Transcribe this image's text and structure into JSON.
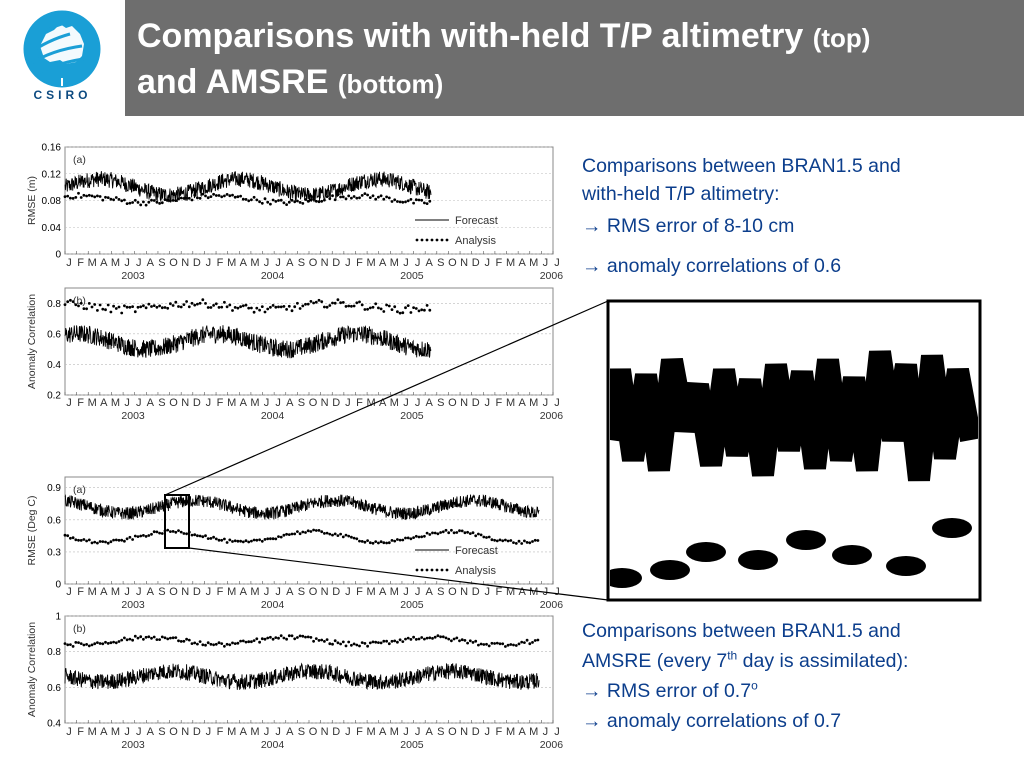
{
  "logo": {
    "text": "CSIRO",
    "color": "#1a9fd6"
  },
  "title": {
    "main": "Comparisons with with-held T/P altimetry",
    "part1_small": "(top)",
    "and": "and AMSRE",
    "part2_small": "(bottom)"
  },
  "colors": {
    "title_bar": "#6e6e6e",
    "title_text": "#ffffff",
    "body_text": "#0c3e8c"
  },
  "text_top": {
    "line1": "Comparisons between BRAN1.5 and",
    "line2": "with-held T/P altimetry:",
    "bullet1": "RMS error of 8-10 cm",
    "bullet2": "anomaly correlations of 0.6",
    "arrow": "→"
  },
  "text_bottom": {
    "line1": "Comparisons between BRAN1.5 and",
    "line2_pre": "AMSRE (every 7",
    "line2_sup": "th",
    "line2_post": " day is assimilated):",
    "bullet1_pre": "RMS error of 0.7",
    "bullet1_sup": "o",
    "bullet2": "anomaly correlations of 0.7",
    "arrow": "→"
  },
  "month_ticks": [
    "J",
    "F",
    "M",
    "A",
    "M",
    "J",
    "J",
    "A",
    "S",
    "O",
    "N",
    "D",
    "J",
    "F",
    "M",
    "A",
    "M",
    "J",
    "J",
    "A",
    "S",
    "O",
    "N",
    "D",
    "J",
    "F",
    "M",
    "A",
    "M",
    "J",
    "J",
    "A",
    "S",
    "O",
    "N",
    "D",
    "J",
    "F",
    "M",
    "A",
    "M",
    "J",
    "J"
  ],
  "year_labels": [
    {
      "label": "2003",
      "month_index": 5
    },
    {
      "label": "2004",
      "month_index": 17
    },
    {
      "label": "2005",
      "month_index": 29
    },
    {
      "label": "2006",
      "month_index": 41
    }
  ],
  "chart_data": [
    {
      "type": "line",
      "panel_label": "(a)",
      "ylabel": "RMSE (m)",
      "ylim": [
        0,
        0.16
      ],
      "yticks": [
        "0",
        "0.04",
        "0.08",
        "0.12",
        "0.16"
      ],
      "ytick_values": [
        0,
        0.04,
        0.08,
        0.12,
        0.16
      ],
      "x_range_months": [
        0,
        42
      ],
      "data_end_month": 31.5,
      "legend": [
        "Forecast",
        "Analysis"
      ],
      "legend_position": "bottom-right",
      "series": [
        {
          "name": "Forecast",
          "style": "line",
          "mean": 0.1,
          "amplitude": 0.012,
          "noise": 0.012
        },
        {
          "name": "Analysis",
          "style": "dots",
          "mean": 0.082,
          "amplitude": 0.005,
          "noise": 0.004
        }
      ]
    },
    {
      "type": "line",
      "panel_label": "(b)",
      "ylabel": "Anomaly Correlation",
      "ylim": [
        0.2,
        0.9
      ],
      "yticks": [
        "0.2",
        "0.4",
        "0.6",
        "0.8"
      ],
      "ytick_values": [
        0.2,
        0.4,
        0.6,
        0.8
      ],
      "x_range_months": [
        0,
        42
      ],
      "data_end_month": 31.5,
      "series": [
        {
          "name": "Forecast",
          "style": "line",
          "mean": 0.55,
          "amplitude": 0.05,
          "noise": 0.06
        },
        {
          "name": "Analysis",
          "style": "dots",
          "mean": 0.78,
          "amplitude": 0.02,
          "noise": 0.025
        }
      ]
    },
    {
      "type": "line",
      "panel_label": "(a)",
      "ylabel": "RMSE (Deg C)",
      "ylim": [
        0,
        1.0
      ],
      "yticks": [
        "0",
        "0.3",
        "0.6",
        "0.9"
      ],
      "ytick_values": [
        0,
        0.3,
        0.6,
        0.9
      ],
      "x_range_months": [
        0,
        42
      ],
      "data_end_month": 40.8,
      "legend": [
        "Forecast",
        "Analysis"
      ],
      "legend_position": "bottom-right",
      "series": [
        {
          "name": "Forecast",
          "style": "line",
          "mean": 0.72,
          "amplitude": 0.06,
          "noise": 0.06
        },
        {
          "name": "Analysis",
          "style": "dots",
          "mean": 0.44,
          "amplitude": 0.05,
          "noise": 0.015
        }
      ]
    },
    {
      "type": "line",
      "panel_label": "(b)",
      "ylabel": "Anomaly Correlation",
      "ylim": [
        0.4,
        1.0
      ],
      "yticks": [
        "0.4",
        "0.6",
        "0.8",
        "1"
      ],
      "ytick_values": [
        0.4,
        0.6,
        0.8,
        1.0
      ],
      "x_range_months": [
        0,
        42
      ],
      "data_end_month": 40.8,
      "series": [
        {
          "name": "Forecast",
          "style": "line",
          "mean": 0.66,
          "amplitude": 0.03,
          "noise": 0.045
        },
        {
          "name": "Analysis",
          "style": "dots",
          "mean": 0.86,
          "amplitude": 0.02,
          "noise": 0.012
        }
      ]
    }
  ]
}
